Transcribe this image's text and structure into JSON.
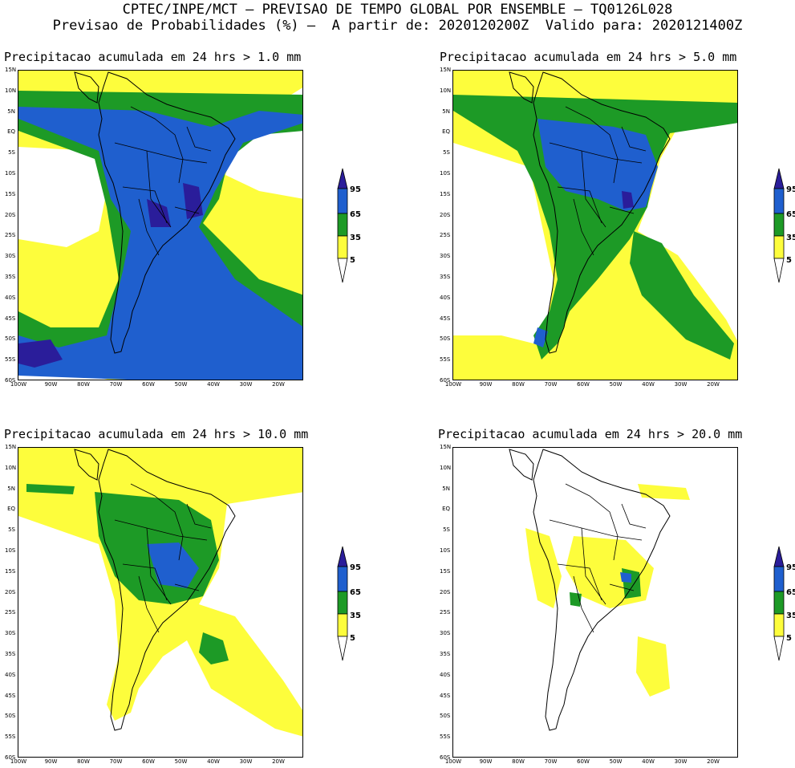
{
  "header": {
    "line1": "CPTEC/INPE/MCT – PREVISAO DE TEMPO GLOBAL POR ENSEMBLE – TQ0126L028",
    "line2": "Previsao de Probabilidades (%) –  A partir de: 2020120200Z  Valido para: 2020121400Z"
  },
  "lat_labels": [
    "15N",
    "10N",
    "5N",
    "EQ",
    "5S",
    "10S",
    "15S",
    "20S",
    "25S",
    "30S",
    "35S",
    "40S",
    "45S",
    "50S",
    "55S",
    "60S"
  ],
  "lon_labels": [
    "100W",
    "90W",
    "80W",
    "70W",
    "60W",
    "50W",
    "40W",
    "30W",
    "20W"
  ],
  "colorbar": {
    "levels": [
      "95",
      "65",
      "35",
      "5"
    ],
    "colors": {
      "top": "#2a1d9a",
      "blue": "#1f5fce",
      "green": "#1d9a26",
      "yellow": "#fdfd3c",
      "white": "#ffffff"
    }
  },
  "panels": [
    {
      "title": "Precipitacao acumulada em 24 hrs > 1.0 mm",
      "threshold_mm": 1.0
    },
    {
      "title": "Precipitacao acumulada em 24 hrs > 5.0 mm",
      "threshold_mm": 5.0
    },
    {
      "title": "Precipitacao acumulada em 24 hrs > 10.0 mm",
      "threshold_mm": 10.0
    },
    {
      "title": "Precipitacao acumulada em 24 hrs > 20.0 mm",
      "threshold_mm": 20.0
    }
  ]
}
